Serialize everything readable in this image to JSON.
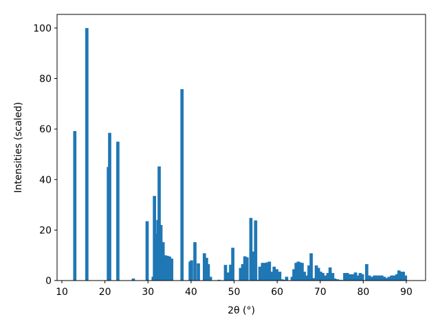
{
  "chart_data": {
    "type": "bar",
    "x_label": "2θ (°)",
    "y_label": "Intensities (scaled)",
    "x": [
      13.0,
      15.8,
      20.8,
      21.1,
      23.0,
      26.6,
      29.8,
      31.2,
      31.5,
      32.0,
      32.3,
      32.6,
      33.0,
      33.5,
      34.0,
      34.5,
      35.0,
      35.5,
      37.9,
      39.8,
      40.1,
      40.9,
      41.7,
      43.1,
      43.6,
      44.0,
      44.5,
      46.5,
      48.0,
      48.6,
      49.2,
      49.7,
      51.5,
      52.0,
      52.5,
      53.0,
      53.9,
      54.4,
      55.0,
      55.6,
      56.0,
      56.6,
      57.1,
      57.7,
      58.2,
      58.8,
      59.3,
      59.9,
      60.6,
      61.1,
      61.7,
      62.2,
      63.5,
      63.9,
      64.4,
      64.9,
      65.3,
      65.8,
      66.3,
      66.8,
      67.4,
      67.9,
      68.4,
      69.1,
      69.6,
      70.1,
      70.6,
      71.2,
      71.8,
      72.3,
      72.9,
      73.4,
      74.0,
      74.8,
      75.7,
      76.3,
      76.9,
      77.6,
      78.2,
      78.8,
      79.3,
      79.8,
      80.8,
      81.4,
      82.0,
      82.6,
      83.2,
      83.8,
      84.3,
      84.9,
      85.5,
      86.0,
      86.6,
      87.2,
      87.8,
      88.3,
      88.8,
      89.3,
      89.8
    ],
    "values": [
      59.2,
      100,
      45,
      58.5,
      55,
      0.8,
      23.5,
      1.5,
      33.5,
      18.5,
      24,
      45.2,
      22,
      15.2,
      10,
      9.8,
      9.5,
      8.7,
      75.8,
      7.5,
      8,
      15.2,
      6.8,
      10.8,
      9,
      6.5,
      1.5,
      0.3,
      6.2,
      3.2,
      6.3,
      13,
      5,
      6.5,
      9.6,
      9.2,
      24.8,
      11.5,
      23.8,
      0.3,
      5.5,
      7,
      7,
      7.2,
      7.5,
      3.5,
      5.5,
      4.5,
      3.5,
      0.5,
      0.3,
      1.5,
      1.5,
      4.5,
      7,
      7.5,
      7.2,
      7,
      3.5,
      2,
      6,
      10.8,
      1,
      6,
      5,
      3.5,
      3,
      2,
      3,
      5.2,
      3,
      0.8,
      0.5,
      0.3,
      3,
      3,
      2.5,
      2.5,
      3.2,
      2,
      3,
      2.5,
      6.5,
      2,
      1.5,
      2,
      2,
      2,
      2,
      1.5,
      1,
      1.5,
      2,
      2,
      2.5,
      4,
      3.5,
      3.5,
      2
    ],
    "color": "#1f77b4",
    "xlim": [
      8.88,
      94.47
    ],
    "ylim": [
      0,
      105.4
    ],
    "xticks": [
      10,
      20,
      30,
      40,
      50,
      60,
      70,
      80,
      90
    ],
    "yticks": [
      0,
      20,
      40,
      60,
      80,
      100
    ]
  }
}
